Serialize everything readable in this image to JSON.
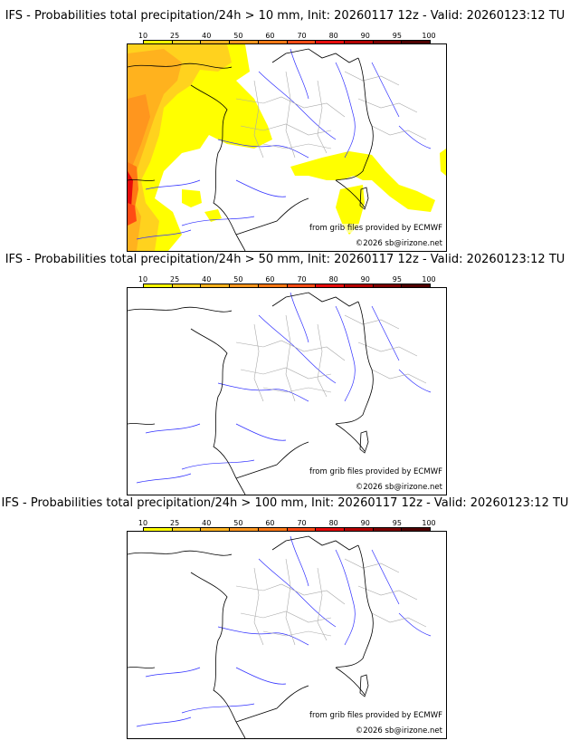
{
  "colorbar": {
    "labels": [
      "10",
      "25",
      "40",
      "50",
      "60",
      "70",
      "80",
      "90",
      "95",
      "100"
    ],
    "colors": [
      "#ffff00",
      "#ffd21e",
      "#ffb21e",
      "#ff961e",
      "#ff7814",
      "#ff4b14",
      "#e60a0a",
      "#b40000",
      "#7d0000",
      "#500000"
    ]
  },
  "credits": {
    "source": "from grib files provided by ECMWF",
    "copyright": "©2026 sb@irizone.net"
  },
  "panels": [
    {
      "title": "IFS - Probabilities total precipitation/24h > 10 mm, Init: 20260117 12z - Valid: 20260123:12 TU",
      "threshold_mm": 10
    },
    {
      "title": "IFS - Probabilities total precipitation/24h > 50 mm, Init: 20260117 12z - Valid: 20260123:12 TU",
      "threshold_mm": 50
    },
    {
      "title": "IFS - Probabilities total precipitation/24h > 100 mm, Init: 20260117 12z - Valid: 20260123:12 TU",
      "threshold_mm": 100
    }
  ]
}
